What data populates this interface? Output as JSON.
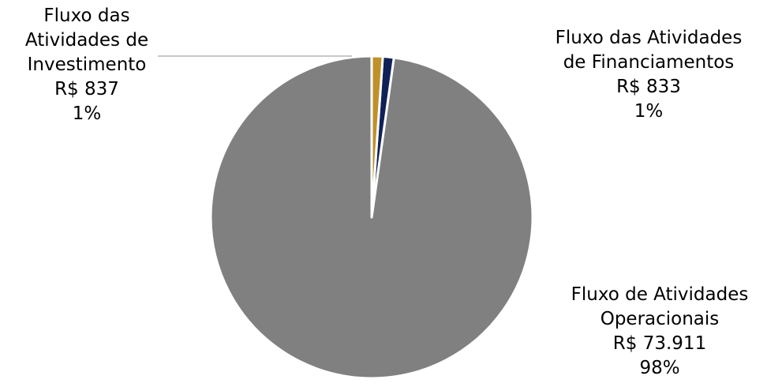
{
  "chart_data": {
    "type": "pie",
    "title": "",
    "slices": [
      {
        "name": "Fluxo de Atividades Operacionais",
        "label_lines": [
          "Fluxo de Atividades",
          "Operacionais"
        ],
        "value_label": "R$ 73.911",
        "value": 73911,
        "percent_label": "98%",
        "color": "#808080"
      },
      {
        "name": "Fluxo das Atividades de Investimento",
        "label_lines": [
          "Fluxo das",
          "Atividades de",
          "Investimento"
        ],
        "value_label": "R$ 837",
        "value": 837,
        "percent_label": "1%",
        "color": "#0f2157"
      },
      {
        "name": "Fluxo das Atividades de Financiamentos",
        "label_lines": [
          "Fluxo das Atividades",
          "de Financiamentos"
        ],
        "value_label": "R$ 833",
        "value": 833,
        "percent_label": "1%",
        "color": "#bf912b"
      }
    ],
    "start_angle_deg": -90,
    "direction": "counterclockwise",
    "legend": "none",
    "leader_line_color": "#a6a6a6"
  }
}
